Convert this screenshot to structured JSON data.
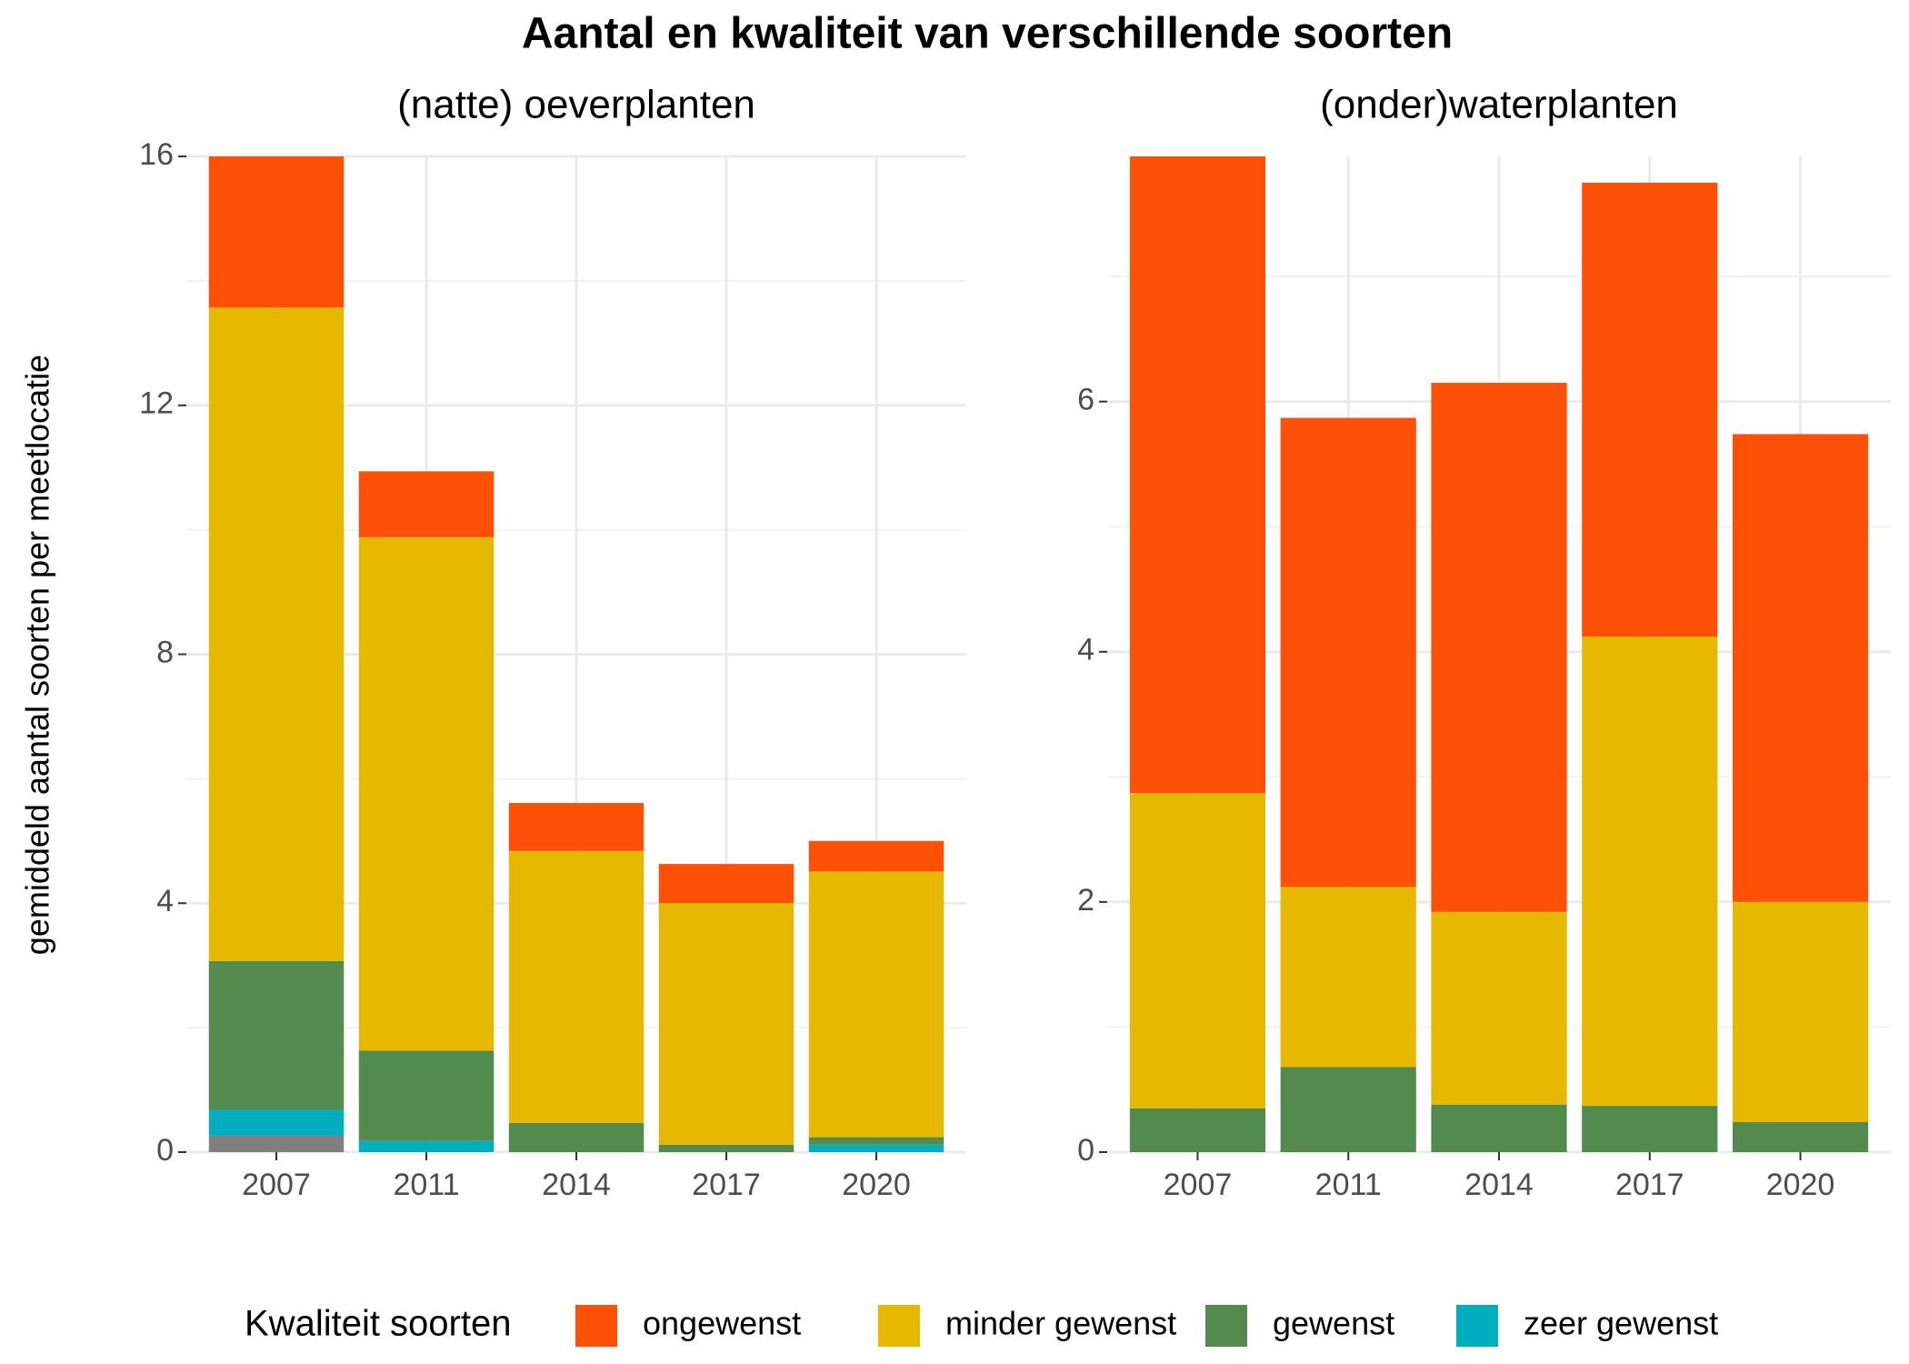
{
  "title": "Aantal en kwaliteit van verschillende soorten",
  "y_label": "gemiddeld aantal soorten per meetlocatie",
  "legend_title": "Kwaliteit soorten",
  "chart_data": [
    {
      "type": "bar",
      "stacked": true,
      "title": "(natte) oeverplanten",
      "categories": [
        "2007",
        "2011",
        "2014",
        "2017",
        "2020"
      ],
      "series": [
        {
          "color": "#808080",
          "values": [
            0.27,
            0,
            0,
            0,
            0
          ]
        },
        {
          "name": "zeer gewenst",
          "color": "#00AEBF",
          "values": [
            0.41,
            0.18,
            0,
            0,
            0.12
          ]
        },
        {
          "name": "gewenst",
          "color": "#538A4D",
          "values": [
            2.39,
            1.45,
            0.47,
            0.12,
            0.12
          ]
        },
        {
          "name": "minder gewenst",
          "color": "#E6B800",
          "values": [
            10.5,
            8.25,
            4.37,
            3.88,
            4.27
          ]
        },
        {
          "name": "ongewenst",
          "color": "#FF5008",
          "values": [
            2.43,
            1.06,
            0.77,
            0.63,
            0.49
          ]
        }
      ],
      "ylim": [
        0,
        16
      ],
      "yticks": [
        0,
        4,
        8,
        12,
        16
      ],
      "grid": true
    },
    {
      "type": "bar",
      "stacked": true,
      "title": "(onder)waterplanten",
      "categories": [
        "2007",
        "2011",
        "2014",
        "2017",
        "2020"
      ],
      "series": [
        {
          "name": "gewenst",
          "color": "#538A4D",
          "values": [
            0.35,
            0.68,
            0.38,
            0.37,
            0.24
          ]
        },
        {
          "name": "minder gewenst",
          "color": "#E6B800",
          "values": [
            2.52,
            1.44,
            1.54,
            3.75,
            1.76
          ]
        },
        {
          "name": "ongewenst",
          "color": "#FF5008",
          "values": [
            5.09,
            3.75,
            4.23,
            3.63,
            3.74
          ]
        }
      ],
      "ylim": [
        0,
        7.96
      ],
      "yticks": [
        0,
        2,
        4,
        6
      ],
      "grid": true
    }
  ]
}
